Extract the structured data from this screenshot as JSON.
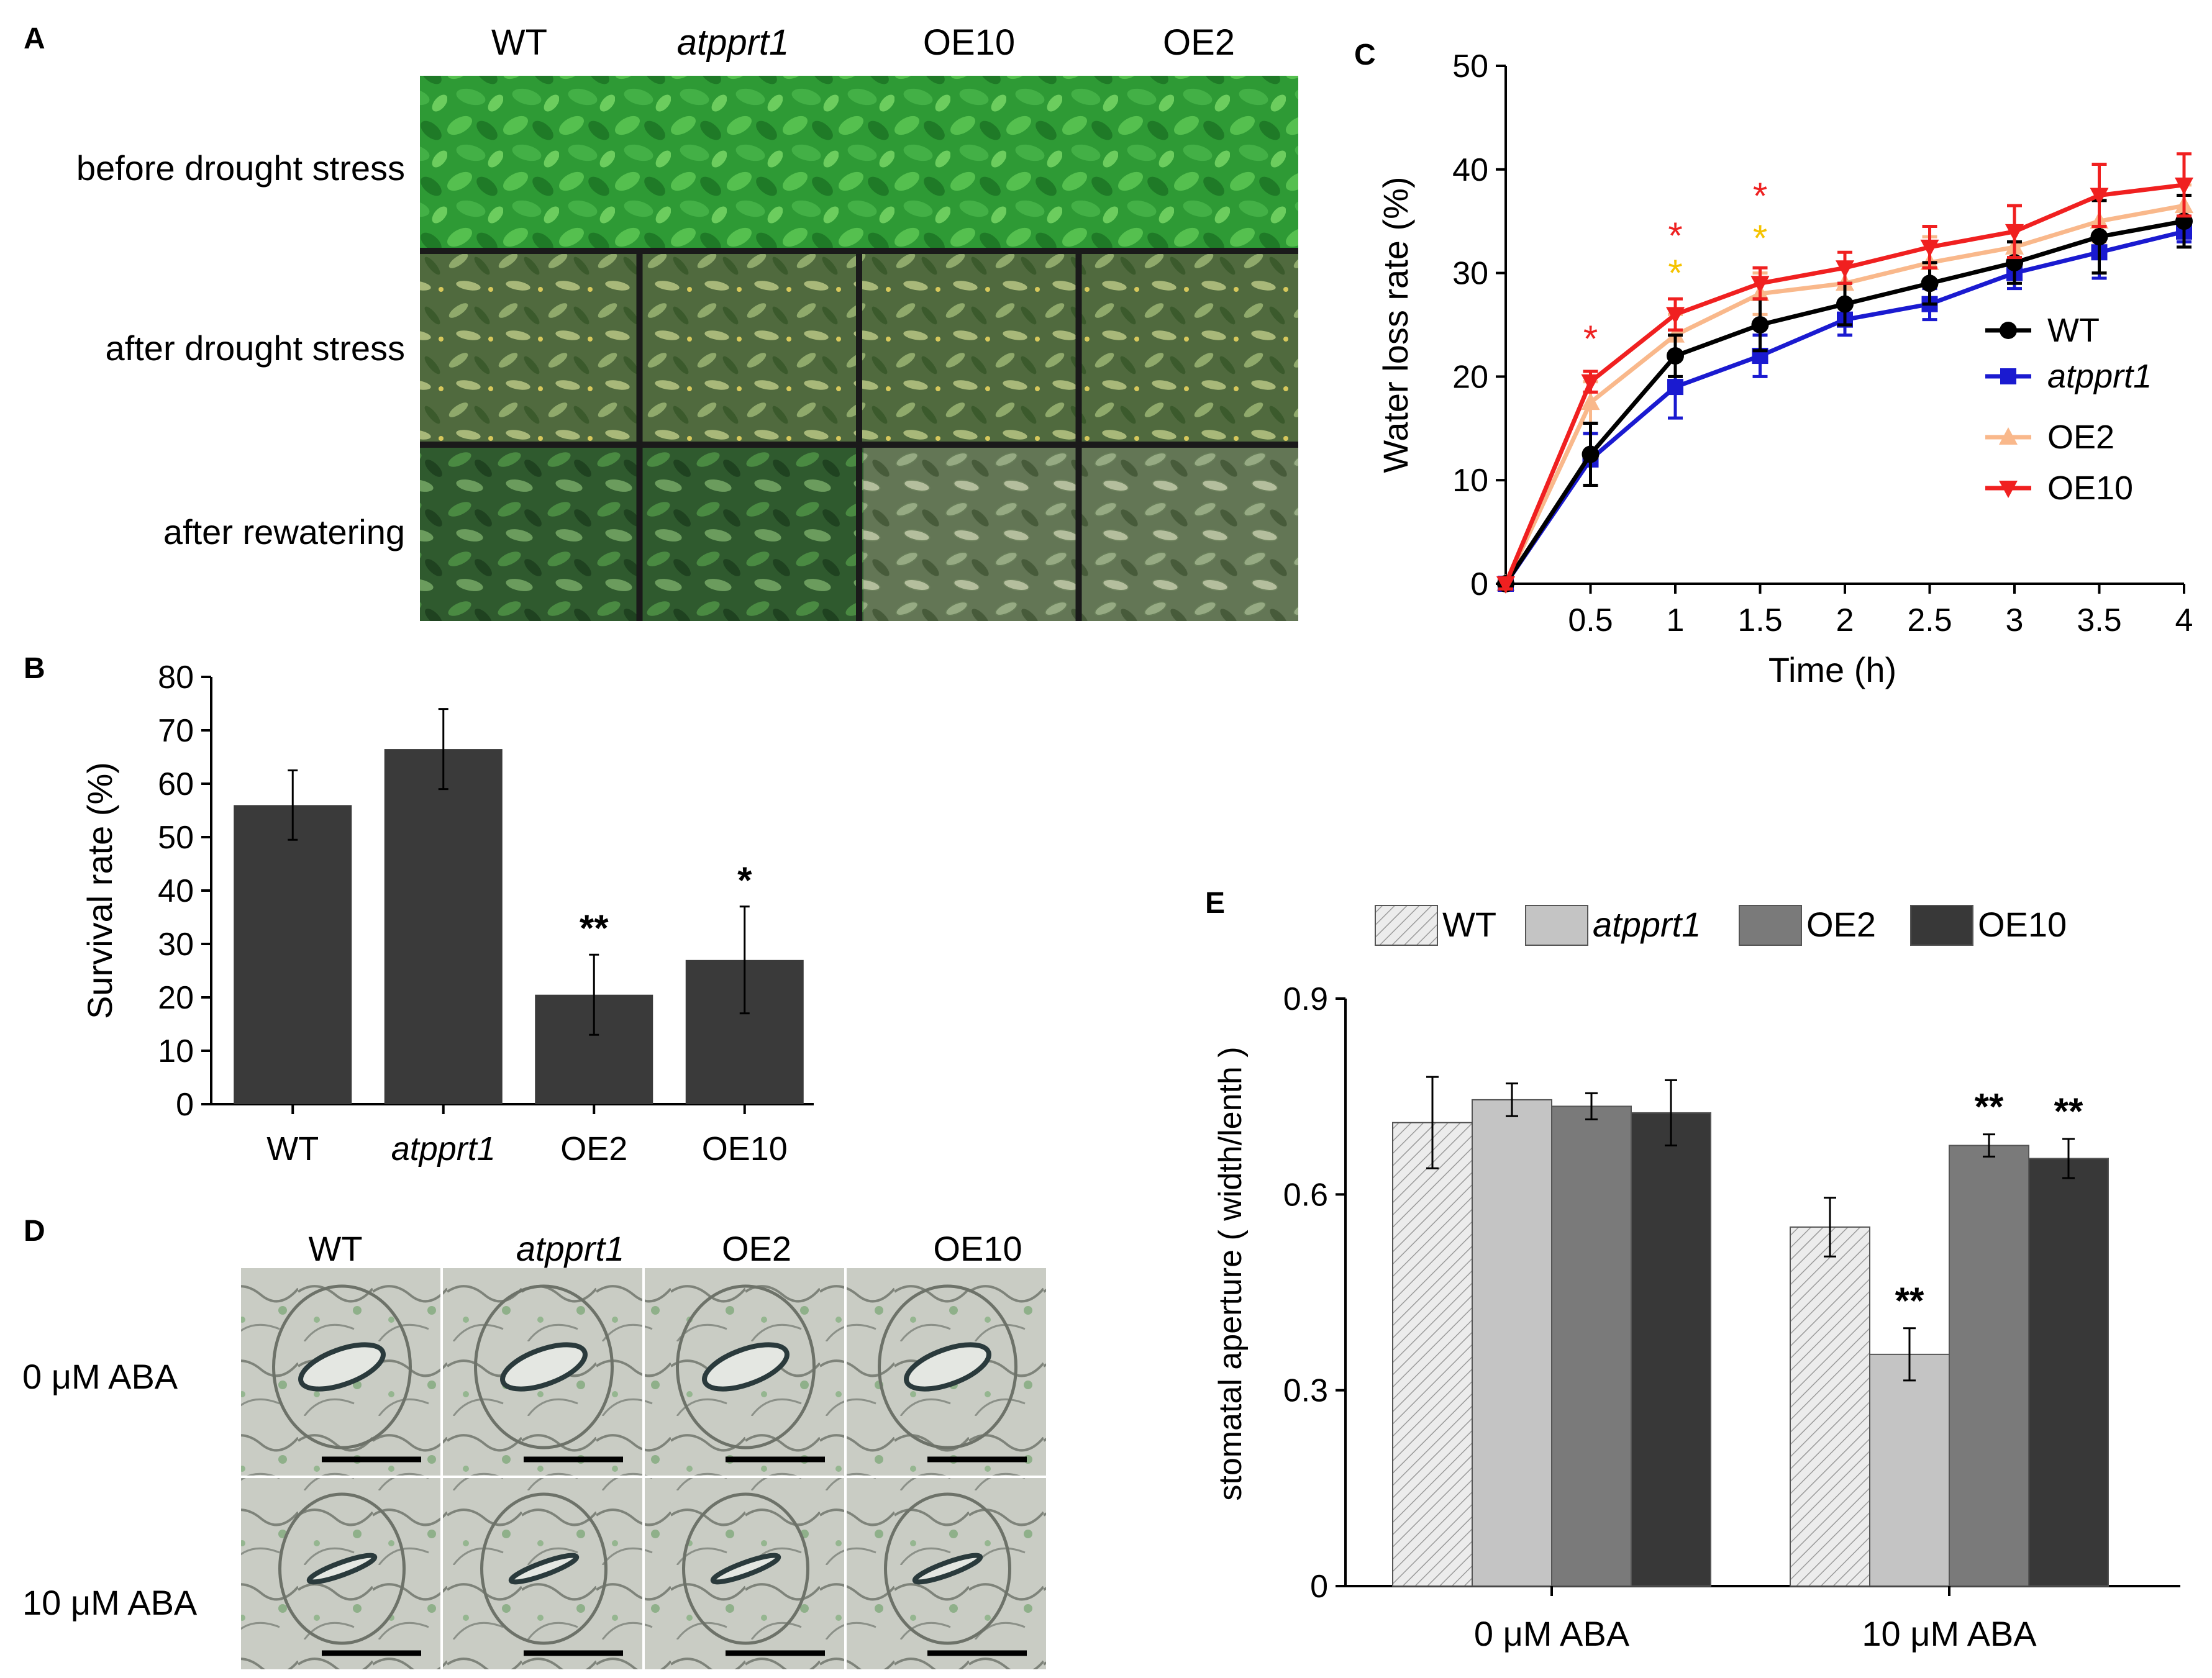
{
  "colors": {
    "wt": "#000000",
    "atpprt1": "#1a1ad0",
    "oe2": "#f9b88b",
    "oe10": "#f02020",
    "star_red": "#ee2222",
    "star_yellow": "#f5c300",
    "bar_dark": "#3a3a3a",
    "e_wt": "#ececec",
    "e_atpprt1": "#c4c4c4",
    "e_oe2": "#7a7a7a",
    "e_oe10": "#383838",
    "plant_green": "#2f9a36"
  },
  "panels": {
    "a": "A",
    "b": "B",
    "c": "C",
    "d": "D",
    "e": "E"
  },
  "panel_a": {
    "columns": [
      "WT",
      "atpprt1",
      "OE10",
      "OE2"
    ],
    "rows": [
      "before drought stress",
      "after drought stress",
      "after rewatering"
    ]
  },
  "panel_d": {
    "columns": [
      "WT",
      "atpprt1",
      "OE2",
      "OE10"
    ],
    "rows": [
      "0 μM ABA",
      "10 μM ABA"
    ]
  },
  "chart_data": [
    {
      "id": "B",
      "type": "bar",
      "title": "",
      "xlabel": "",
      "ylabel": "Survival rate (%)",
      "ylim": [
        0,
        80
      ],
      "yticks": [
        "0",
        "10",
        "20",
        "30",
        "40",
        "50",
        "60",
        "70",
        "80"
      ],
      "categories": [
        "WT",
        "atpprt1",
        "OE2",
        "OE10"
      ],
      "values": [
        56,
        66.5,
        20.5,
        27
      ],
      "errors": [
        6.5,
        7.5,
        7.5,
        10
      ],
      "annotations": [
        "",
        "",
        "**",
        "*"
      ]
    },
    {
      "id": "C",
      "type": "line",
      "title": "",
      "xlabel": "Time (h)",
      "ylabel": "Water loss rate (%)",
      "ylim": [
        0,
        50
      ],
      "yticks": [
        "0",
        "10",
        "20",
        "30",
        "40",
        "50"
      ],
      "x": [
        0,
        0.5,
        1,
        1.5,
        2,
        2.5,
        3,
        3.5,
        4
      ],
      "xticks": [
        "0.5",
        "1",
        "1.5",
        "2",
        "2.5",
        "3",
        "3.5",
        "4"
      ],
      "series": [
        {
          "name": "WT",
          "values": [
            0,
            12.5,
            22,
            25,
            27,
            29,
            31,
            33.5,
            35
          ],
          "errors": [
            0.5,
            3,
            2,
            2.5,
            2,
            2,
            2,
            3.5,
            2.5
          ]
        },
        {
          "name": "atpprt1",
          "values": [
            0,
            12,
            19,
            22,
            25.5,
            27,
            30,
            32,
            34
          ],
          "errors": [
            0.5,
            2.5,
            3,
            2,
            1.5,
            1.5,
            1.5,
            2.5,
            1
          ]
        },
        {
          "name": "OE2",
          "values": [
            0,
            17.5,
            24,
            28,
            29,
            31,
            32.5,
            35,
            36.5
          ],
          "errors": [
            0.5,
            2,
            2,
            2,
            2,
            2.5,
            2,
            2,
            2
          ]
        },
        {
          "name": "OE10",
          "values": [
            0,
            19.5,
            26,
            29,
            30.5,
            32.5,
            34,
            37.5,
            38.5
          ],
          "errors": [
            0.5,
            1,
            1.5,
            1.5,
            1.5,
            2,
            2.5,
            3,
            3
          ]
        }
      ],
      "significance": [
        {
          "x": 0.5,
          "red": "*",
          "yellow": ""
        },
        {
          "x": 1,
          "red": "*",
          "yellow": "*"
        },
        {
          "x": 1.5,
          "red": "*",
          "yellow": "*"
        }
      ],
      "legend_position": "right"
    },
    {
      "id": "E",
      "type": "bar",
      "title": "",
      "xlabel": "",
      "ylabel": "stomatal aperture ( width/lenth )",
      "ylim": [
        0,
        0.9
      ],
      "yticks": [
        "0",
        "0.3",
        "0.6",
        "0.9"
      ],
      "categories": [
        "0 μM ABA",
        "10 μM ABA"
      ],
      "series": [
        {
          "name": "WT",
          "values": [
            0.71,
            0.55
          ],
          "errors": [
            0.07,
            0.045
          ]
        },
        {
          "name": "atpprt1",
          "values": [
            0.745,
            0.355
          ],
          "errors": [
            0.025,
            0.04
          ]
        },
        {
          "name": "OE2",
          "values": [
            0.735,
            0.675
          ],
          "errors": [
            0.02,
            0.017
          ]
        },
        {
          "name": "OE10",
          "values": [
            0.725,
            0.655
          ],
          "errors": [
            0.05,
            0.03
          ]
        }
      ],
      "annotations": [
        [
          "",
          ""
        ],
        [
          "",
          "**"
        ],
        [
          "",
          "**"
        ],
        [
          "",
          "**"
        ]
      ],
      "legend_position": "top"
    }
  ]
}
